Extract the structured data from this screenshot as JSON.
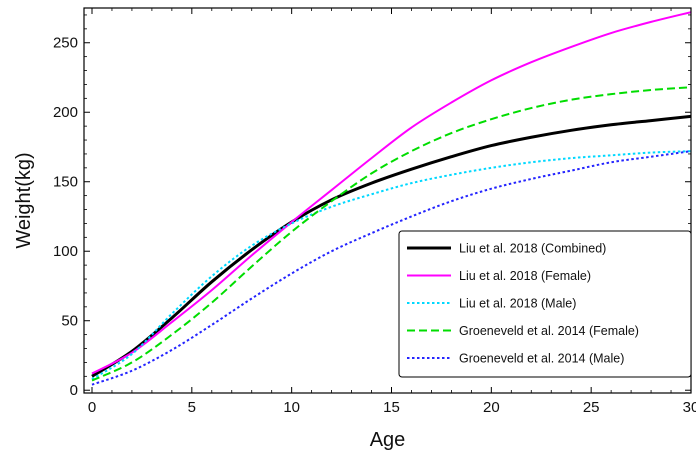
{
  "chart_data": {
    "type": "line",
    "title": "",
    "xlabel": "Age",
    "ylabel": "Weight(kg)",
    "xlim": [
      -0.4,
      30
    ],
    "ylim": [
      -2,
      275
    ],
    "x_ticks": [
      0,
      5,
      10,
      15,
      20,
      25,
      30
    ],
    "y_ticks": [
      0,
      50,
      100,
      150,
      200,
      250
    ],
    "x_tick_labels": [
      "0",
      "5",
      "10",
      "15",
      "20",
      "25",
      "30"
    ],
    "y_tick_labels": [
      "0",
      "50",
      "100",
      "150",
      "200",
      "250"
    ],
    "grid": false,
    "legend_position": "bottom-right",
    "x": [
      0,
      2,
      4,
      6,
      8,
      10,
      12,
      14,
      16,
      18,
      20,
      22,
      24,
      26,
      28,
      30
    ],
    "series": [
      {
        "name": "Liu et al. 2018 (Combined)",
        "color": "#000000",
        "style": "solid",
        "values": [
          10,
          28,
          52,
          78,
          101,
          121,
          137,
          149,
          159,
          168,
          176,
          182,
          187,
          191,
          194,
          197
        ]
      },
      {
        "name": "Liu et al. 2018 (Female)",
        "color": "#ff00ff",
        "style": "solid",
        "values": [
          12,
          27,
          49,
          72,
          97,
          121,
          144,
          167,
          189,
          207,
          223,
          236,
          247,
          257,
          265,
          272
        ]
      },
      {
        "name": "Liu et al. 2018 (Male)",
        "color": "#00d8ff",
        "style": "dotted",
        "values": [
          8,
          26,
          55,
          82,
          104,
          120,
          132,
          141,
          149,
          155,
          160,
          164,
          167,
          169,
          171,
          172
        ]
      },
      {
        "name": "Groeneveld et al. 2014 (Female)",
        "color": "#00dd00",
        "style": "dashed",
        "values": [
          7,
          20,
          40,
          63,
          89,
          114,
          136,
          156,
          172,
          185,
          195,
          203,
          209,
          213,
          216,
          218
        ]
      },
      {
        "name": "Groeneveld et al. 2014 (Male)",
        "color": "#2424ff",
        "style": "dotted",
        "values": [
          4,
          14,
          29,
          47,
          66,
          84,
          100,
          113,
          125,
          136,
          145,
          152,
          158,
          164,
          168,
          172
        ]
      }
    ]
  }
}
